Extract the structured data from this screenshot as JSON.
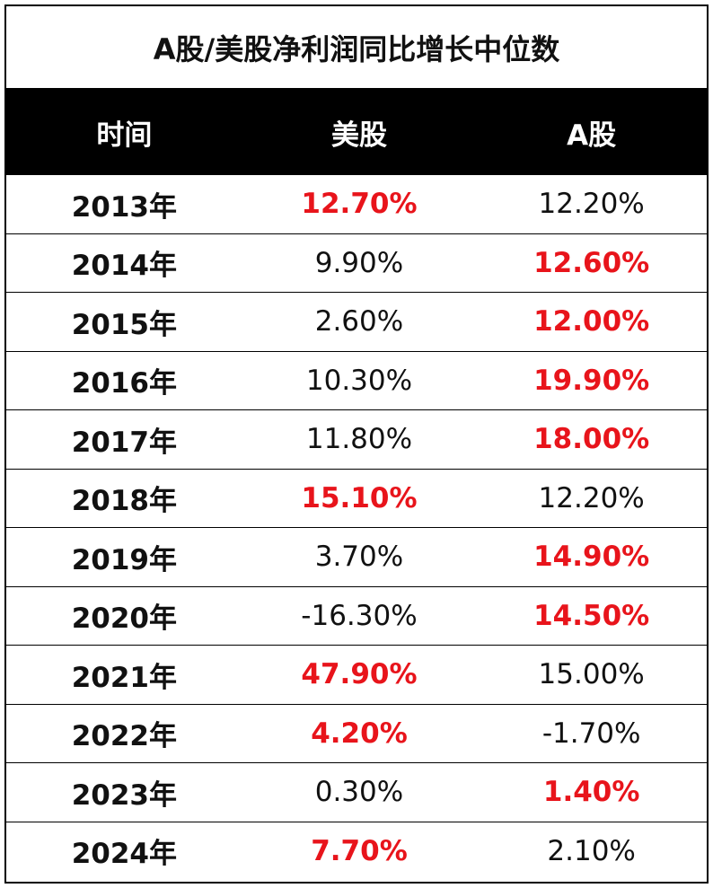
{
  "colors": {
    "highlight": "#e8141b",
    "text": "#111111",
    "header_bg": "#000000",
    "header_text": "#ffffff"
  },
  "chart_data": {
    "type": "table",
    "title": "A股/美股净利润同比增长中位数",
    "columns": [
      "时间",
      "美股",
      "A股"
    ],
    "rows": [
      {
        "year": "2013年",
        "us": "12.70%",
        "a": "12.20%",
        "us_hi": true,
        "a_hi": false
      },
      {
        "year": "2014年",
        "us": "9.90%",
        "a": "12.60%",
        "us_hi": false,
        "a_hi": true
      },
      {
        "year": "2015年",
        "us": "2.60%",
        "a": "12.00%",
        "us_hi": false,
        "a_hi": true
      },
      {
        "year": "2016年",
        "us": "10.30%",
        "a": "19.90%",
        "us_hi": false,
        "a_hi": true
      },
      {
        "year": "2017年",
        "us": "11.80%",
        "a": "18.00%",
        "us_hi": false,
        "a_hi": true
      },
      {
        "year": "2018年",
        "us": "15.10%",
        "a": "12.20%",
        "us_hi": true,
        "a_hi": false
      },
      {
        "year": "2019年",
        "us": "3.70%",
        "a": "14.90%",
        "us_hi": false,
        "a_hi": true
      },
      {
        "year": "2020年",
        "us": "-16.30%",
        "a": "14.50%",
        "us_hi": false,
        "a_hi": true
      },
      {
        "year": "2021年",
        "us": "47.90%",
        "a": "15.00%",
        "us_hi": true,
        "a_hi": false
      },
      {
        "year": "2022年",
        "us": "4.20%",
        "a": "-1.70%",
        "us_hi": true,
        "a_hi": false
      },
      {
        "year": "2023年",
        "us": "0.30%",
        "a": "1.40%",
        "us_hi": false,
        "a_hi": true
      },
      {
        "year": "2024年",
        "us": "7.70%",
        "a": "2.10%",
        "us_hi": true,
        "a_hi": false
      }
    ]
  }
}
